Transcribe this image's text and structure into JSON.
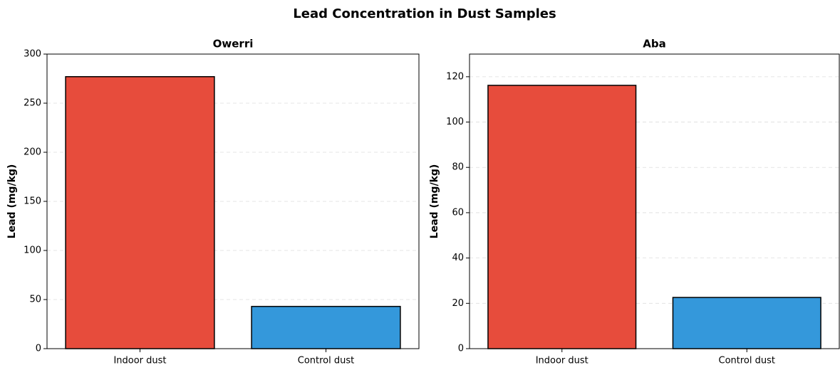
{
  "title": "Lead Concentration in Dust Samples",
  "chart_data": [
    {
      "type": "bar",
      "title": "Owerri",
      "ylabel": "Lead (mg/kg)",
      "categories": [
        "Indoor dust",
        "Control dust"
      ],
      "values": [
        277,
        43
      ],
      "colors": [
        "#e74c3c",
        "#3498db"
      ],
      "ylim": [
        0,
        300
      ],
      "yticks": [
        0,
        50,
        100,
        150,
        200,
        250,
        300
      ],
      "grid": true
    },
    {
      "type": "bar",
      "title": "Aba",
      "ylabel": "Lead (mg/kg)",
      "categories": [
        "Indoor dust",
        "Control dust"
      ],
      "values": [
        116.2,
        22.6
      ],
      "colors": [
        "#e74c3c",
        "#3498db"
      ],
      "ylim": [
        0,
        130
      ],
      "yticks": [
        0,
        20,
        40,
        60,
        80,
        100,
        120
      ],
      "grid": true
    }
  ]
}
